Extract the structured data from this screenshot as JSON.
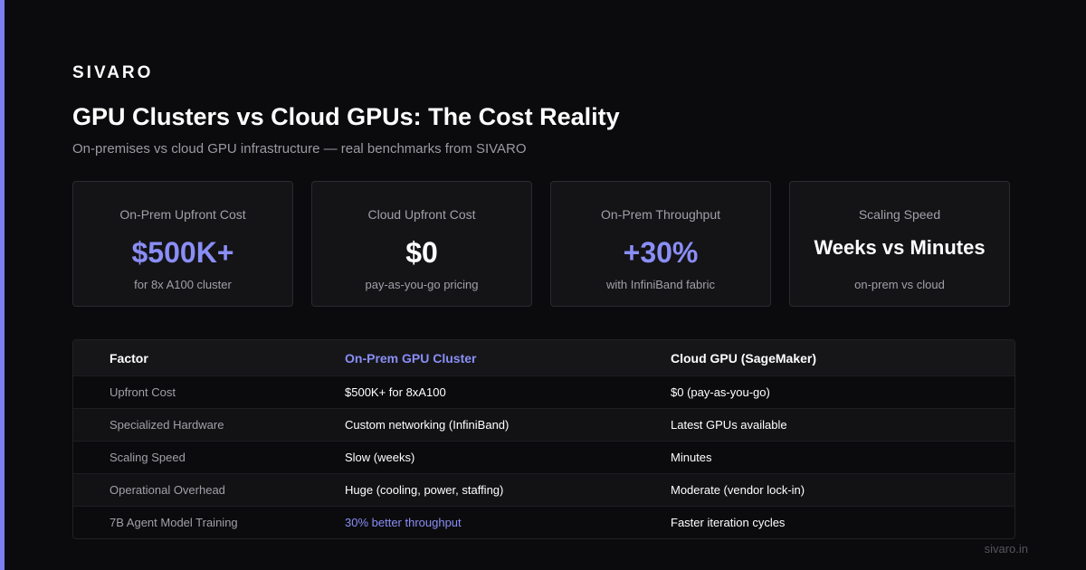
{
  "brand": "SIVARO",
  "title": "GPU Clusters vs Cloud GPUs: The Cost Reality",
  "subtitle": "On-premises vs cloud GPU infrastructure — real benchmarks from SIVARO",
  "cards": [
    {
      "label": "On-Prem Upfront Cost",
      "value": "$500K+",
      "note": "for 8x A100 cluster"
    },
    {
      "label": "Cloud Upfront Cost",
      "value": "$0",
      "note": "pay-as-you-go pricing"
    },
    {
      "label": "On-Prem Throughput",
      "value": "+30%",
      "note": "with InfiniBand fabric"
    },
    {
      "label": "Scaling Speed",
      "value": "Weeks vs Minutes",
      "note": "on-prem vs cloud"
    }
  ],
  "table": {
    "headers": [
      "Factor",
      "On-Prem GPU Cluster",
      "Cloud GPU (SageMaker)"
    ],
    "rows": [
      [
        "Upfront Cost",
        "$500K+ for 8xA100",
        "$0 (pay-as-you-go)"
      ],
      [
        "Specialized Hardware",
        "Custom networking (InfiniBand)",
        "Latest GPUs available"
      ],
      [
        "Scaling Speed",
        "Slow (weeks)",
        "Minutes"
      ],
      [
        "Operational Overhead",
        "Huge (cooling, power, staffing)",
        "Moderate (vendor lock-in)"
      ],
      [
        "7B Agent Model Training",
        "30% better throughput",
        "Faster iteration cycles"
      ]
    ]
  },
  "footer": "sivaro.in"
}
